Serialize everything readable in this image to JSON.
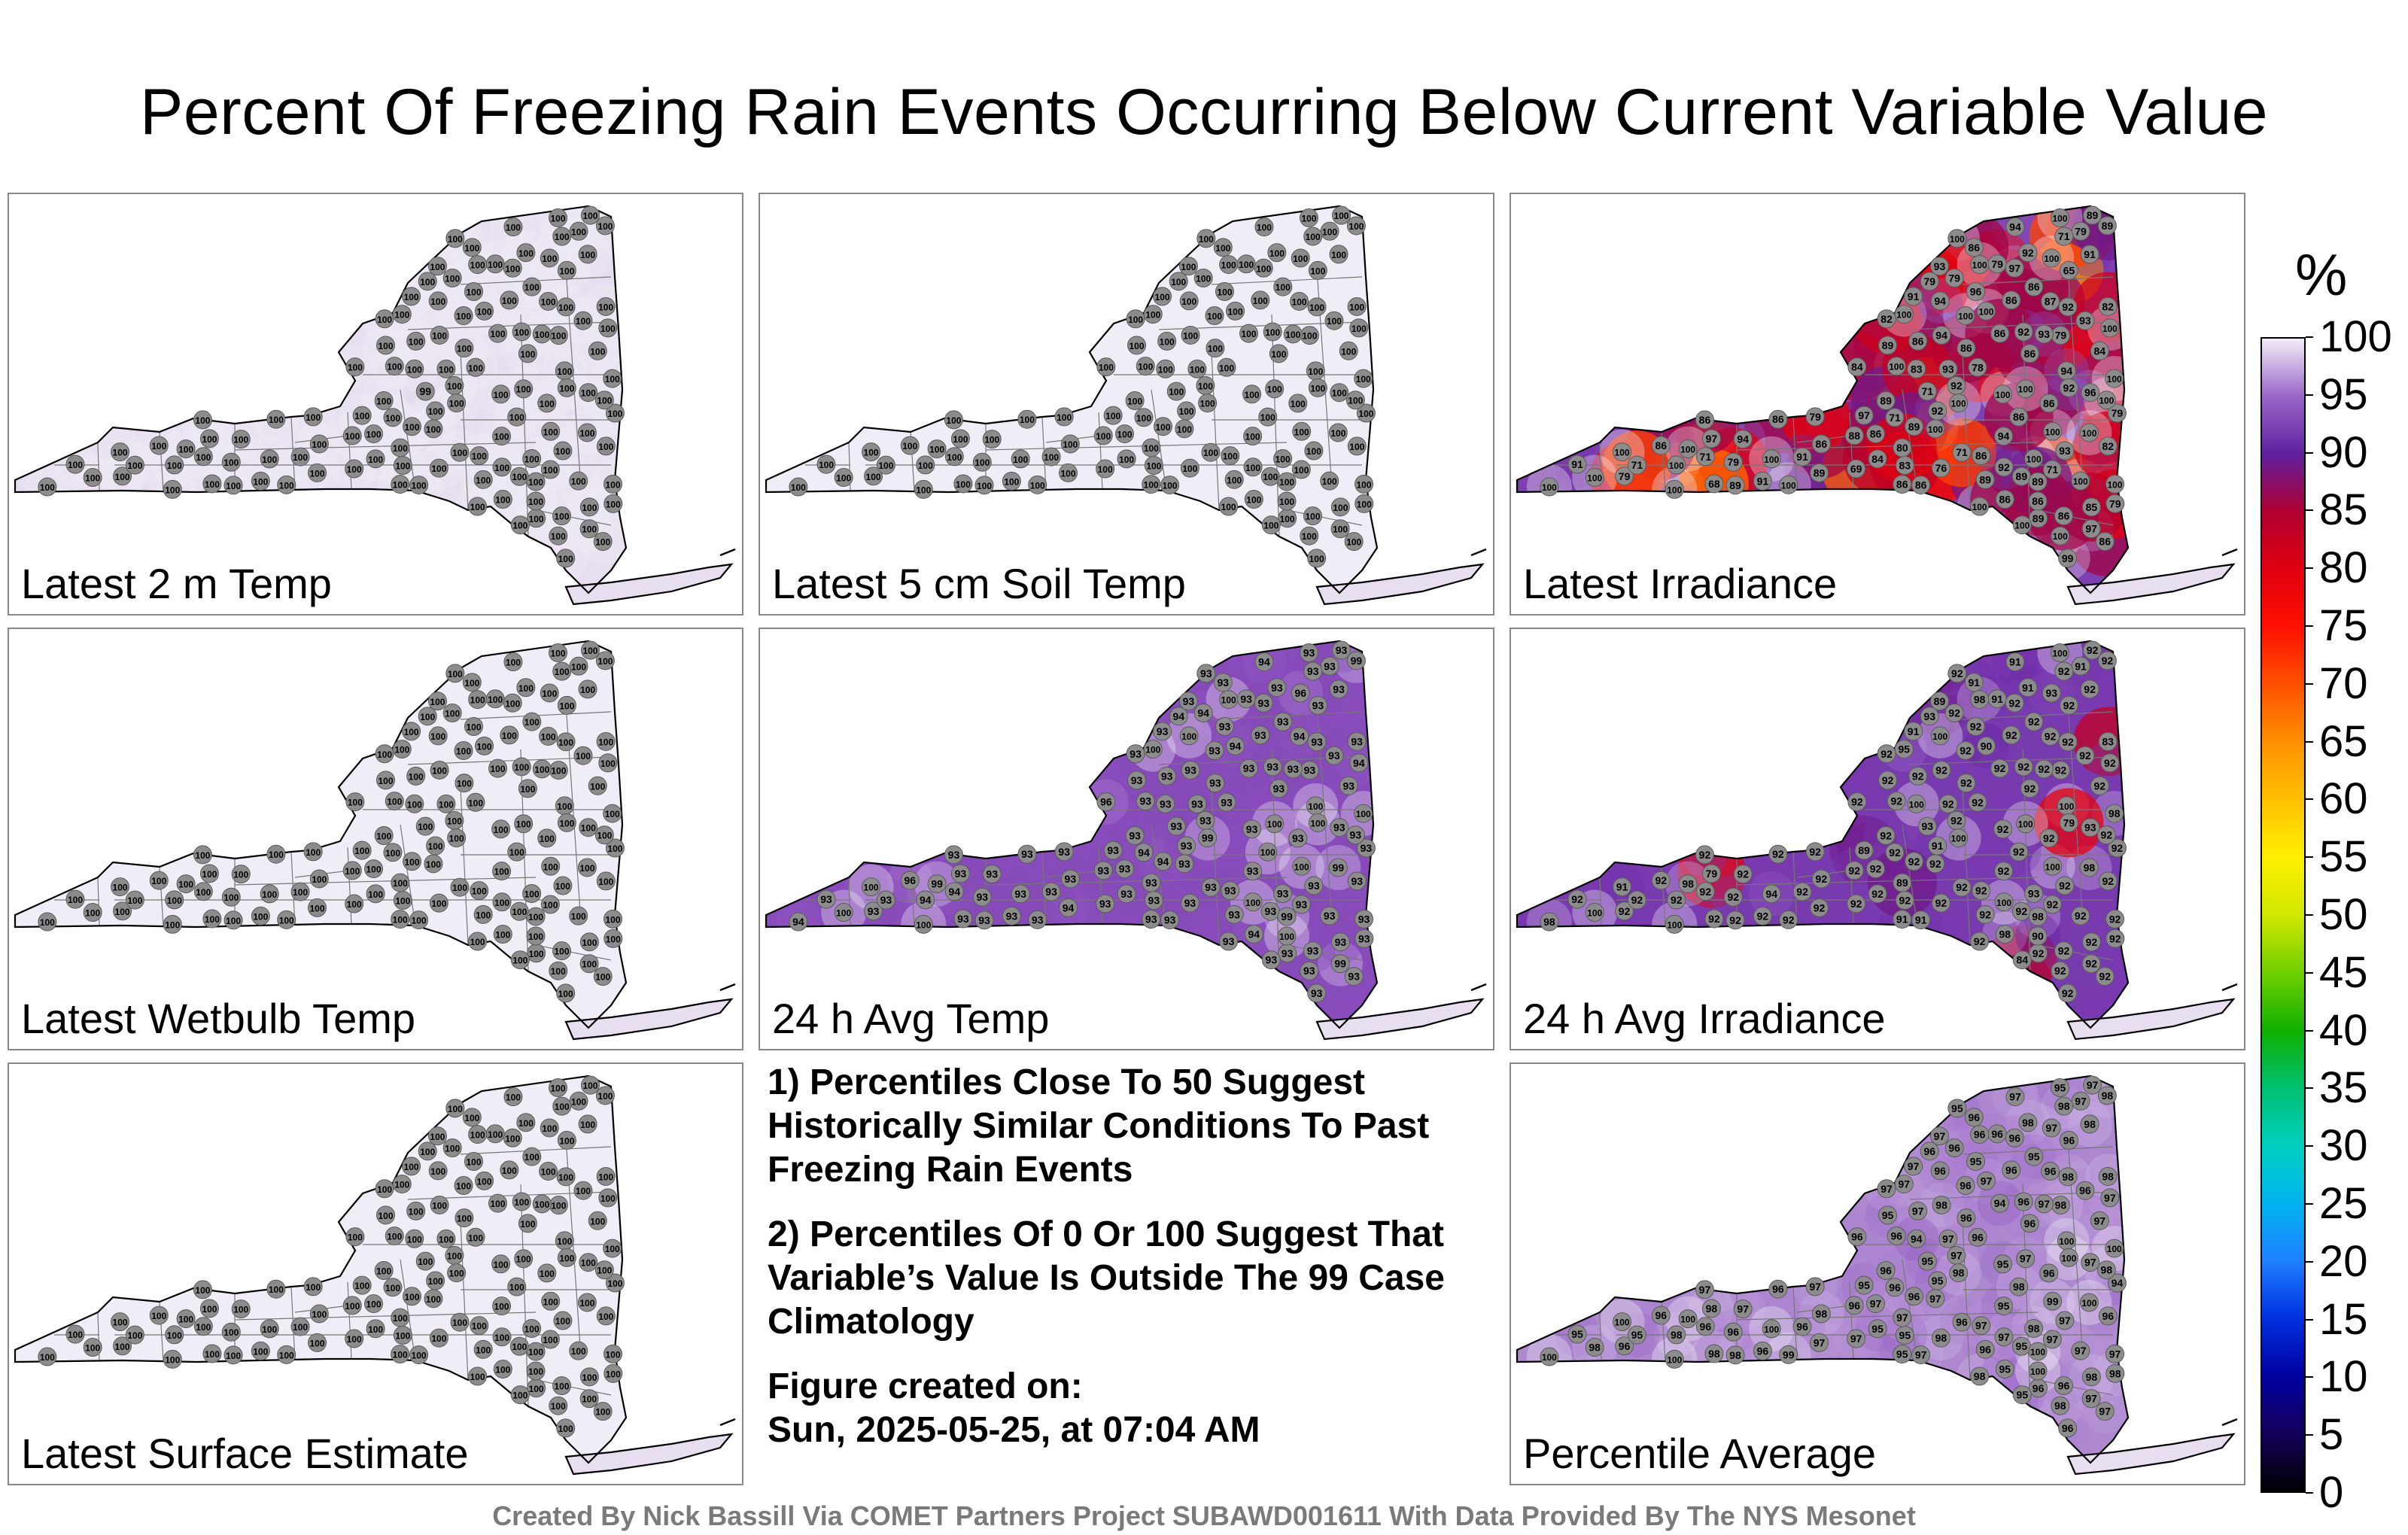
{
  "title": "Percent Of Freezing Rain Events Occurring Below Current Variable Value",
  "colorbar": {
    "unit": "%",
    "ticks": [
      "100",
      "95",
      "90",
      "85",
      "80",
      "75",
      "70",
      "65",
      "60",
      "55",
      "50",
      "45",
      "40",
      "35",
      "30",
      "25",
      "20",
      "15",
      "10",
      "5",
      "0"
    ],
    "min": 0,
    "max": 100
  },
  "panels": [
    {
      "id": "p1",
      "label": "Latest 2 m Temp",
      "mode": "uniform",
      "fill": "#e7dff0",
      "values": [
        100,
        100,
        100,
        100,
        100,
        100,
        100,
        100,
        100,
        100,
        100,
        100,
        100,
        100,
        100,
        100,
        100,
        100,
        100,
        100,
        100,
        100,
        100,
        100,
        100,
        100,
        100,
        100,
        100,
        100,
        100,
        100,
        100,
        100,
        100,
        100,
        100,
        100,
        100,
        100,
        100,
        100,
        100,
        100,
        100,
        100,
        100,
        100,
        100,
        100,
        100,
        100,
        100,
        100,
        100,
        100,
        100,
        100,
        100,
        100,
        100,
        100,
        100,
        100,
        99,
        100,
        100,
        100,
        100,
        100,
        100,
        100,
        100,
        100,
        100,
        100,
        100,
        100,
        100,
        100,
        100,
        100,
        100,
        100,
        100,
        100,
        100,
        100,
        100,
        100,
        100,
        100,
        100,
        100,
        100,
        100,
        100,
        100,
        100,
        100,
        100,
        100,
        100,
        100,
        100,
        100,
        100,
        100,
        100,
        100,
        100,
        100,
        100,
        100,
        100,
        100,
        100,
        100,
        100,
        100,
        100,
        100,
        100,
        100,
        100,
        100,
        100
      ]
    },
    {
      "id": "p2",
      "label": "Latest 5 cm Soil Temp",
      "mode": "uniform",
      "fill": "#f1edf6",
      "values": [
        100,
        100,
        100,
        100,
        100,
        100,
        100,
        100,
        100,
        100,
        100,
        100,
        100,
        100,
        100,
        100,
        100,
        100,
        100,
        100,
        100,
        100,
        100,
        100,
        100,
        100,
        100,
        100,
        100,
        100,
        100,
        100,
        100,
        100,
        100,
        100,
        100,
        100,
        100,
        100,
        100,
        100,
        100,
        100,
        100,
        100,
        100,
        100,
        100,
        100,
        100,
        100,
        100,
        100,
        100,
        100,
        100,
        100,
        100,
        100,
        100,
        100,
        100,
        100,
        100,
        100,
        100,
        100,
        100,
        100,
        100,
        100,
        100,
        100,
        100,
        100,
        100,
        100,
        100,
        100,
        100,
        100,
        100,
        100,
        100,
        100,
        100,
        100,
        100,
        100,
        100,
        100,
        100,
        100,
        100,
        100,
        100,
        100,
        100,
        100,
        100,
        100,
        100,
        100,
        100,
        100,
        100,
        100,
        100,
        100,
        100,
        100,
        100,
        100,
        100,
        100,
        100,
        100,
        100,
        100,
        100,
        100,
        100,
        100,
        100,
        100,
        100
      ]
    },
    {
      "id": "p3",
      "label": "Latest Irradiance",
      "mode": "irradiance",
      "fill": "#7e3fb0",
      "values": [
        93,
        86,
        86,
        92,
        93,
        94,
        79,
        86,
        94,
        92,
        89,
        97,
        97,
        84,
        86,
        89,
        93,
        71,
        96,
        93,
        86,
        86,
        89,
        79,
        76,
        78,
        79,
        86,
        100,
        89,
        88,
        89,
        100,
        100,
        94,
        79,
        69,
        71,
        65,
        71,
        87,
        100,
        100,
        100,
        99,
        91,
        79,
        86,
        86,
        79,
        84,
        91,
        94,
        79,
        100,
        100,
        91,
        97,
        79,
        86,
        86,
        79,
        71,
        92,
        71,
        86,
        86,
        100,
        89,
        86,
        91,
        68,
        79,
        91,
        89,
        100,
        100,
        82,
        100,
        89,
        86,
        83,
        92,
        71,
        100,
        84,
        89,
        71,
        86,
        83,
        80,
        89,
        97,
        85,
        82,
        86,
        96,
        100,
        86,
        82,
        92,
        93,
        100,
        86,
        100,
        100,
        100,
        100,
        100,
        100,
        100,
        100,
        100,
        100,
        100,
        100,
        89,
        94,
        86,
        92,
        100,
        86,
        92,
        100,
        100,
        100,
        94
      ]
    },
    {
      "id": "p4",
      "label": "Latest Wetbulb Temp",
      "mode": "uniform",
      "fill": "#f1edf6",
      "values": [
        100,
        100,
        100,
        100,
        100,
        100,
        100,
        100,
        100,
        100,
        100,
        100,
        100,
        100,
        100,
        100,
        100,
        100,
        100,
        100,
        100,
        100,
        100,
        100,
        100,
        100,
        100,
        100,
        100,
        100,
        100,
        100,
        100,
        100,
        100,
        100,
        100,
        100,
        100,
        100,
        100,
        100,
        100,
        100,
        100,
        100,
        100,
        100,
        100,
        100,
        100,
        100,
        100,
        100,
        100,
        100,
        100,
        100,
        100,
        100,
        100,
        100,
        100,
        100,
        100,
        100,
        100,
        100,
        100,
        100,
        100,
        100,
        100,
        100,
        100,
        100,
        100,
        100,
        100,
        100,
        100,
        100,
        100,
        100,
        100,
        100,
        100,
        100,
        100,
        100,
        100,
        100,
        100,
        100,
        100,
        100,
        100,
        100,
        100,
        100,
        100,
        100,
        100,
        100,
        100,
        100,
        100,
        100,
        100,
        100,
        100,
        100,
        100,
        100,
        100,
        100,
        100,
        100,
        100,
        100,
        100,
        100,
        100,
        100,
        100,
        100,
        100
      ]
    },
    {
      "id": "p5",
      "label": "24 h Avg Temp",
      "mode": "avgtemp",
      "fill": "#8a4cbd",
      "values": [
        93,
        93,
        93,
        93,
        93,
        93,
        93,
        93,
        94,
        93,
        93,
        93,
        93,
        93,
        93,
        93,
        93,
        94,
        93,
        93,
        93,
        93,
        93,
        93,
        93,
        93,
        93,
        93,
        93,
        93,
        93,
        94,
        93,
        93,
        93,
        93,
        93,
        94,
        93,
        93,
        94,
        94,
        93,
        93,
        93,
        93,
        94,
        93,
        93,
        93,
        96,
        93,
        93,
        94,
        93,
        93,
        93,
        93,
        93,
        93,
        93,
        93,
        93,
        93,
        93,
        93,
        93,
        93,
        99,
        93,
        93,
        93,
        93,
        93,
        93,
        93,
        93,
        93,
        94,
        93,
        96,
        93,
        93,
        93,
        93,
        93,
        94,
        93,
        93,
        93,
        93,
        93,
        99,
        93,
        93,
        93,
        93,
        93,
        94,
        93,
        93,
        93,
        94,
        93,
        93,
        96,
        93,
        93,
        100,
        99,
        99,
        94,
        100,
        99,
        100,
        100,
        99,
        100,
        100,
        100,
        100,
        100,
        100,
        100,
        100,
        100,
        100
      ]
    },
    {
      "id": "p6",
      "label": "24 h Avg Irradiance",
      "mode": "avgirr",
      "fill": "#7a38b0",
      "values": [
        89,
        91,
        92,
        91,
        92,
        92,
        91,
        91,
        91,
        92,
        92,
        89,
        92,
        92,
        91,
        92,
        92,
        92,
        92,
        92,
        92,
        92,
        92,
        91,
        92,
        92,
        92,
        92,
        92,
        92,
        92,
        92,
        92,
        92,
        92,
        92,
        92,
        92,
        92,
        92,
        92,
        92,
        92,
        92,
        92,
        92,
        93,
        92,
        92,
        92,
        92,
        92,
        92,
        92,
        92,
        92,
        92,
        79,
        92,
        92,
        92,
        92,
        92,
        92,
        93,
        92,
        92,
        84,
        92,
        92,
        91,
        92,
        92,
        92,
        92,
        93,
        92,
        83,
        90,
        92,
        92,
        100,
        92,
        92,
        92,
        92,
        92,
        92,
        92,
        92,
        89,
        92,
        92,
        92,
        92,
        92,
        93,
        92,
        98,
        92,
        91,
        92,
        92,
        92,
        92,
        93,
        94,
        100,
        95,
        98,
        98,
        98,
        98,
        100,
        100,
        100,
        98,
        100,
        90,
        79,
        91,
        92,
        100,
        98,
        100,
        100,
        100
      ]
    },
    {
      "id": "p7",
      "label": "Latest Surface Estimate",
      "mode": "uniform",
      "fill": "#f1edf6",
      "values": [
        100,
        100,
        100,
        100,
        100,
        100,
        100,
        100,
        100,
        100,
        100,
        100,
        100,
        100,
        100,
        100,
        100,
        100,
        100,
        100,
        100,
        100,
        100,
        100,
        100,
        100,
        100,
        100,
        100,
        100,
        100,
        100,
        100,
        100,
        100,
        100,
        100,
        100,
        100,
        100,
        100,
        100,
        100,
        100,
        100,
        100,
        100,
        100,
        100,
        100,
        100,
        100,
        100,
        100,
        100,
        100,
        100,
        100,
        100,
        100,
        100,
        100,
        100,
        100,
        100,
        100,
        100,
        100,
        100,
        100,
        100,
        100,
        100,
        100,
        100,
        100,
        100,
        100,
        100,
        100,
        100,
        100,
        100,
        100,
        100,
        100,
        100,
        100,
        100,
        100,
        100,
        100,
        100,
        100,
        100,
        100,
        100,
        100,
        100,
        100,
        100,
        100,
        100,
        100,
        100,
        100,
        100,
        100,
        100,
        100,
        100,
        100,
        100,
        100,
        100,
        100,
        100,
        100,
        100,
        100,
        100,
        100,
        100,
        100,
        100,
        100,
        100
      ]
    },
    {
      "id": "p8",
      "label": "Percentile Average",
      "mode": "average",
      "fill": "#ad88cf",
      "values": [
        97,
        95,
        96,
        98,
        97,
        97,
        96,
        97,
        97,
        98,
        95,
        95,
        96,
        97,
        96,
        98,
        96,
        96,
        95,
        97,
        97,
        97,
        96,
        97,
        98,
        96,
        94,
        96,
        95,
        96,
        96,
        97,
        96,
        95,
        98,
        98,
        97,
        96,
        96,
        97,
        96,
        98,
        98,
        97,
        96,
        98,
        96,
        96,
        95,
        96,
        96,
        96,
        95,
        96,
        97,
        97,
        95,
        98,
        98,
        97,
        96,
        96,
        98,
        97,
        95,
        96,
        97,
        95,
        98,
        98,
        97,
        98,
        97,
        96,
        96,
        98,
        96,
        98,
        97,
        95,
        96,
        94,
        96,
        95,
        98,
        95,
        96,
        96,
        94,
        95,
        97,
        97,
        97,
        98,
        97,
        96,
        97,
        98,
        95,
        96,
        95,
        97,
        97,
        97,
        99,
        97,
        100,
        95,
        97,
        100,
        100,
        100,
        100,
        98,
        99,
        100,
        100,
        100,
        100,
        100,
        100,
        98,
        97,
        96,
        98,
        97,
        96
      ]
    }
  ],
  "notes": [
    "1) Percentiles Close To 50 Suggest Historically Similar Conditions To Past Freezing Rain Events",
    "2) Percentiles Of 0 Or 100 Suggest That Variable’s Value Is Outside The 99 Case Climatology"
  ],
  "figure_created_label": "Figure created on:",
  "figure_created_date": "Sun, 2025-05-25, at 07:04 AM",
  "credits": "Created By Nick Bassill Via COMET Partners Project SUBAWD001611 With Data Provided By The NYS Mesonet"
}
